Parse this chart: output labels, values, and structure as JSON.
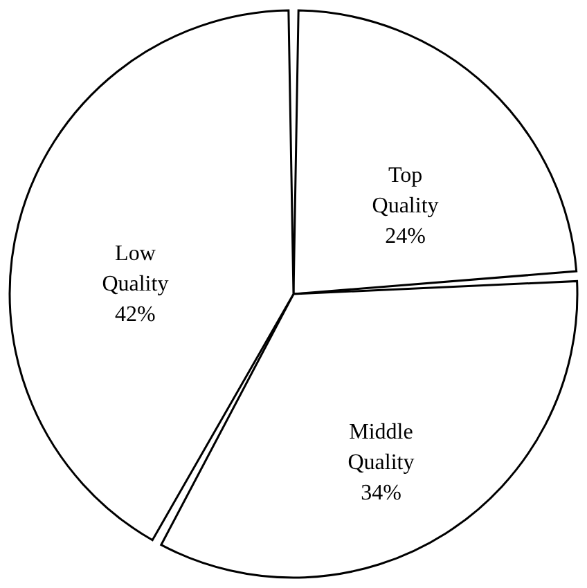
{
  "chart_data": {
    "type": "pie",
    "categories": [
      "Top Quality",
      "Middle Quality",
      "Low Quality"
    ],
    "values": [
      24,
      34,
      42
    ],
    "value_labels": [
      "24%",
      "34%",
      "42%"
    ],
    "colors": [
      "#ffffff",
      "#ffffff",
      "#ffffff"
    ]
  }
}
